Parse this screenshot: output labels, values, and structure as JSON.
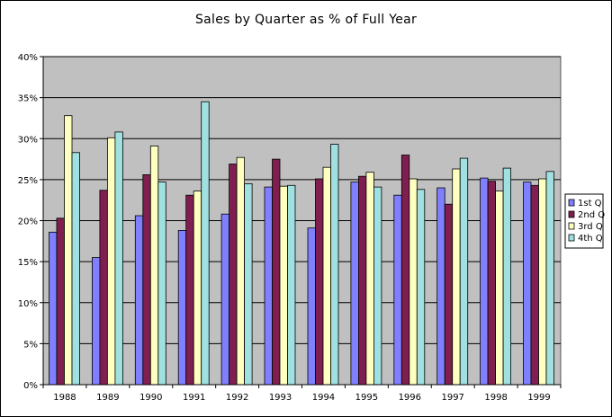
{
  "chart_data": {
    "type": "bar",
    "title": "Sales by Quarter as % of Full Year",
    "categories": [
      "1988",
      "1989",
      "1990",
      "1991",
      "1992",
      "1993",
      "1994",
      "1995",
      "1996",
      "1997",
      "1998",
      "1999"
    ],
    "series": [
      {
        "name": "1st Q",
        "color": "#8080ff",
        "values": [
          18.6,
          15.5,
          20.6,
          18.8,
          20.8,
          24.1,
          19.1,
          24.7,
          23.1,
          24.0,
          25.2,
          24.7
        ]
      },
      {
        "name": "2nd Q",
        "color": "#7f1f4f",
        "values": [
          20.3,
          23.7,
          25.6,
          23.1,
          26.9,
          27.5,
          25.1,
          25.4,
          28.0,
          22.0,
          24.8,
          24.3
        ]
      },
      {
        "name": "3rd Q",
        "color": "#ffffc0",
        "values": [
          32.8,
          30.1,
          29.1,
          23.6,
          27.7,
          24.2,
          26.5,
          25.9,
          25.1,
          26.3,
          23.6,
          25.1
        ]
      },
      {
        "name": "4th Q",
        "color": "#a0e0e0",
        "values": [
          28.3,
          30.8,
          24.7,
          34.5,
          24.5,
          24.3,
          29.3,
          24.1,
          23.8,
          27.6,
          26.4,
          26.0
        ]
      }
    ],
    "y_tick_labels": [
      "0%",
      "5%",
      "10%",
      "15%",
      "20%",
      "25%",
      "30%",
      "35%",
      "40%"
    ],
    "ylim": [
      0,
      40
    ],
    "y_step": 5,
    "grid": true,
    "legend_position": "right",
    "plot_background": "#c0c0c0"
  }
}
